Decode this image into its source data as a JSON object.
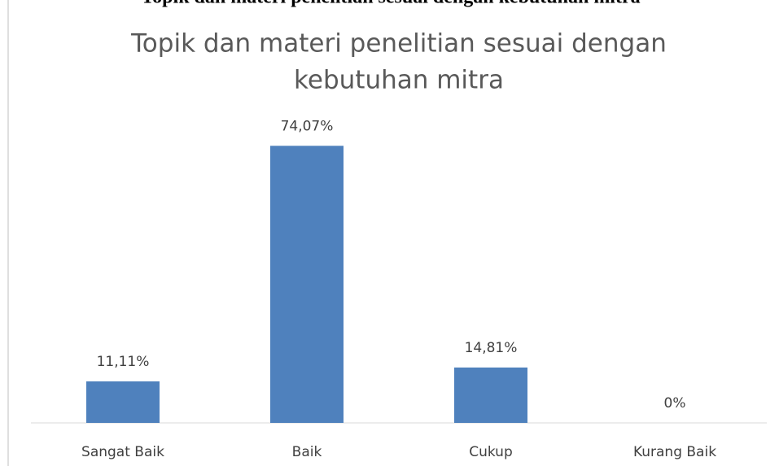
{
  "heading": "Topik dan materi penelitian sesuai dengan kebutuhan mitra",
  "chart_data": {
    "type": "bar",
    "title": [
      "Topik dan materi penelitian sesuai dengan",
      "kebutuhan mitra"
    ],
    "categories": [
      "Sangat Baik",
      "Baik",
      "Cukup",
      "Kurang Baik"
    ],
    "values": [
      11.11,
      74.07,
      14.81,
      0
    ],
    "value_labels": [
      "11,11%",
      "74,07%",
      "14,81%",
      "0%"
    ],
    "color": "#4f81bd",
    "ylim": [
      0,
      80
    ]
  }
}
